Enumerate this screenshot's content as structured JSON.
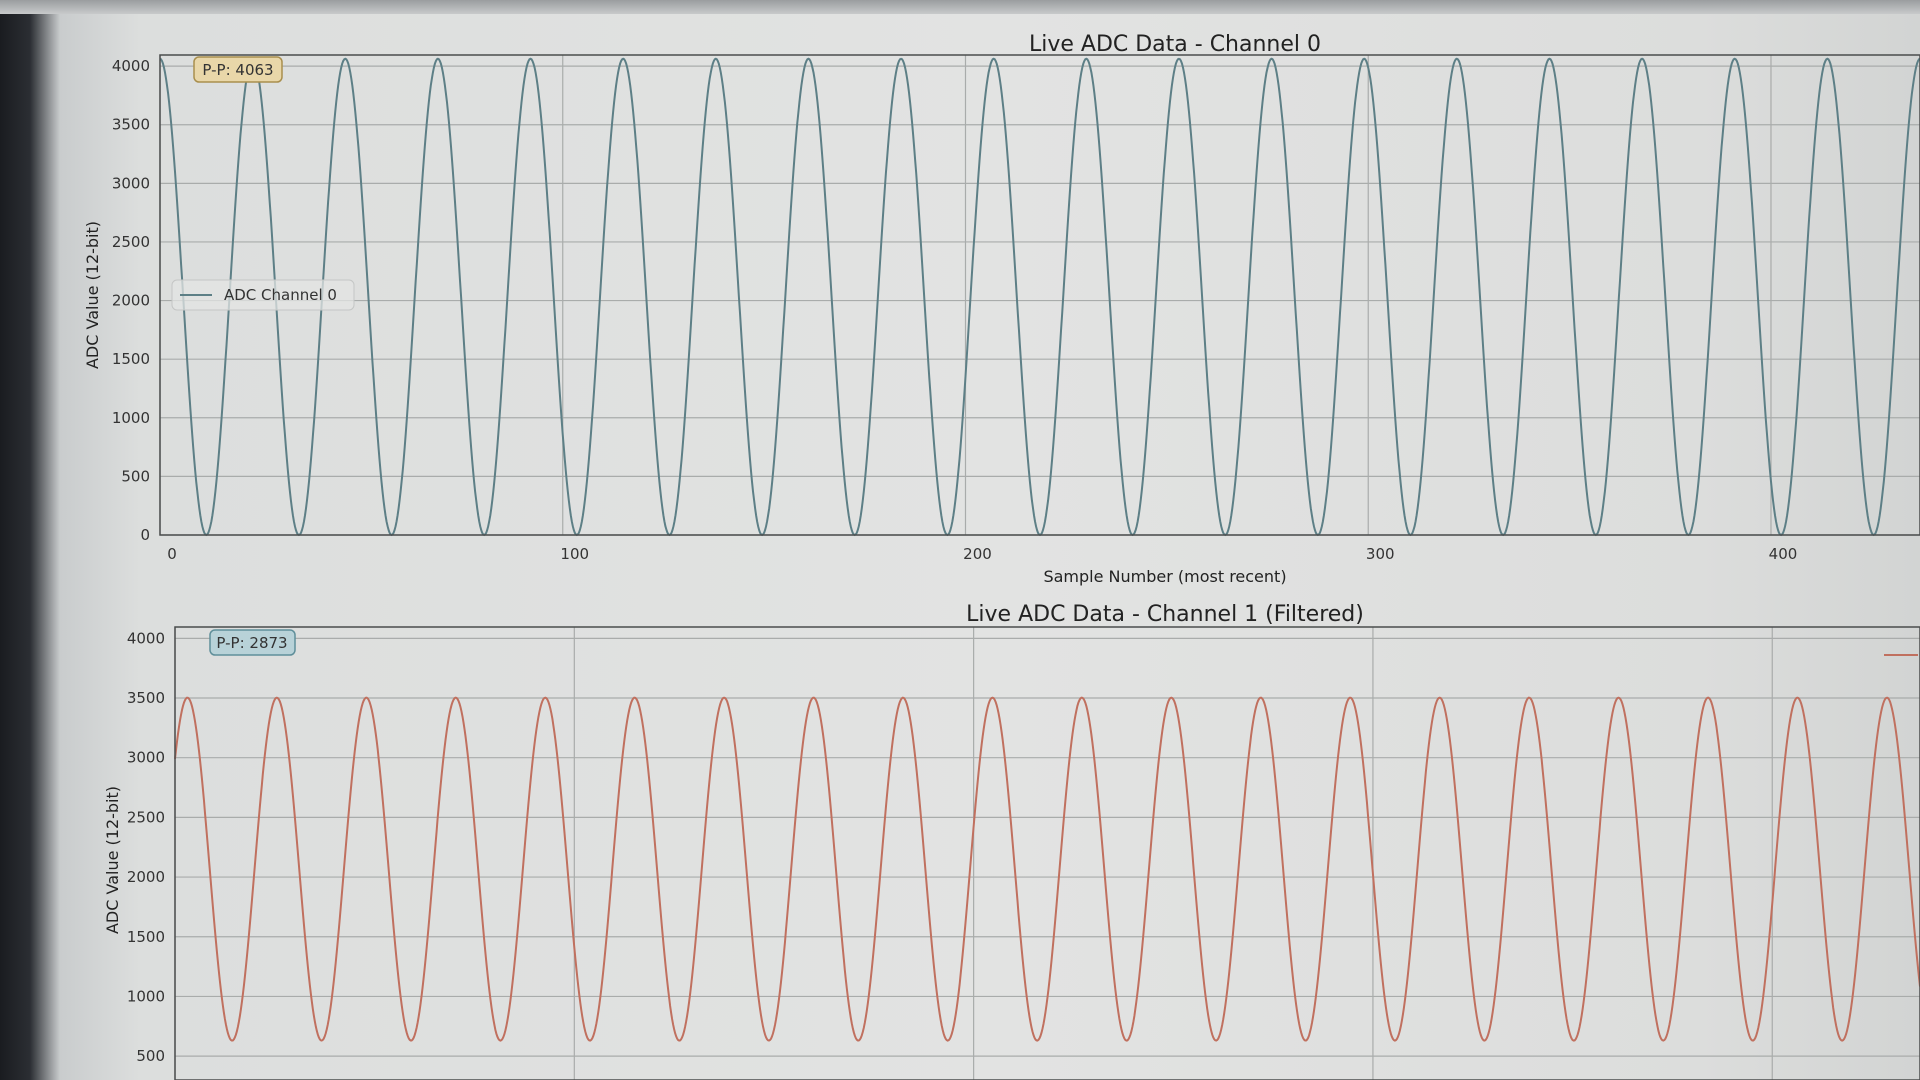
{
  "chart_data": [
    {
      "type": "line",
      "title": "Live ADC Data - Channel 0",
      "xlabel": "Sample Number (most recent)",
      "ylabel": "ADC Value (12-bit)",
      "xlim": [
        0,
        437
      ],
      "ylim": [
        0,
        4095
      ],
      "x_ticks": [
        0,
        100,
        200,
        300,
        400
      ],
      "y_ticks": [
        0,
        500,
        1000,
        1500,
        2000,
        2500,
        3000,
        3500,
        4000
      ],
      "grid": true,
      "legend_position": "center-left",
      "annotation_position": "top-left",
      "annotation": "P-P: 4063",
      "series": [
        {
          "name": "ADC Channel 0",
          "color": "#5d7f86",
          "waveform": "sine",
          "period_samples": 23,
          "min": 0,
          "max": 4063,
          "phase_deg": 90
        }
      ]
    },
    {
      "type": "line",
      "title": "Live ADC Data - Channel 1 (Filtered)",
      "ylabel": "ADC Value (12-bit)",
      "xlim": [
        0,
        437
      ],
      "ylim": [
        300,
        4095
      ],
      "y_ticks": [
        500,
        1000,
        1500,
        2000,
        2500,
        3000,
        3500,
        4000
      ],
      "grid": true,
      "annotation_position": "top-left",
      "annotation": "P-P: 2873",
      "series": [
        {
          "color": "#c0705f",
          "waveform": "sine",
          "period_samples": 22.4,
          "min": 630,
          "max": 3503,
          "phase_deg": 40
        }
      ]
    }
  ],
  "colors": {
    "pp_box_ch0": "#e9d7a9",
    "pp_box_ch1": "#b8d2d8"
  }
}
